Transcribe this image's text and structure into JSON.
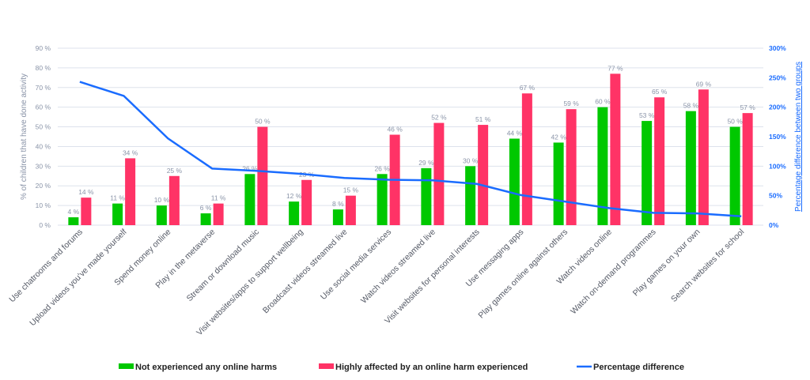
{
  "chart_data": {
    "type": "bar",
    "categories": [
      "Use chatrooms and forums",
      "Upload videos you've made yourself",
      "Spend money online",
      "Play  in the metaverse",
      "Stream or download music",
      "Visit websites/apps to support wellbeing",
      "Broadcast videos streamed live",
      "Use social media services",
      "Watch videos streamed live",
      "Visit websites for personal interests",
      "Use messaging apps",
      "Play games online against others",
      "Watch videos online",
      "Watch on-demand programmes",
      "Play games on your own",
      "Search websites for school"
    ],
    "series": [
      {
        "name": "Not experienced any online harms",
        "type": "bar",
        "axis": "left",
        "color": "#00c800",
        "values": [
          4,
          11,
          10,
          6,
          26,
          12,
          8,
          26,
          29,
          30,
          44,
          42,
          60,
          53,
          58,
          50
        ]
      },
      {
        "name": "Highly affected by an online harm experienced",
        "type": "bar",
        "axis": "left",
        "color": "#ff3366",
        "values": [
          14,
          34,
          25,
          11,
          50,
          23,
          15,
          46,
          52,
          51,
          67,
          59,
          77,
          65,
          69,
          57
        ]
      },
      {
        "name": "Percentage difference",
        "type": "line",
        "axis": "right",
        "color": "#1a6cff",
        "values": [
          243,
          219,
          147,
          96,
          92,
          87,
          80,
          77,
          76,
          70,
          51,
          40,
          29,
          21,
          20,
          15
        ]
      }
    ],
    "ylabel": "% of children that have done activity",
    "y2label": "Percentage difference between two groups",
    "ylim": [
      0,
      90
    ],
    "y2lim": [
      0,
      300
    ],
    "yticks": [
      "0 %",
      "10 %",
      "20 %",
      "30 %",
      "40 %",
      "50 %",
      "60 %",
      "70 %",
      "80 %",
      "90 %"
    ],
    "y2ticks": [
      "0%",
      "50%",
      "100%",
      "150%",
      "200%",
      "250%",
      "300%"
    ],
    "data_label_suffix": " %",
    "grid": true,
    "legend": "bottom"
  }
}
